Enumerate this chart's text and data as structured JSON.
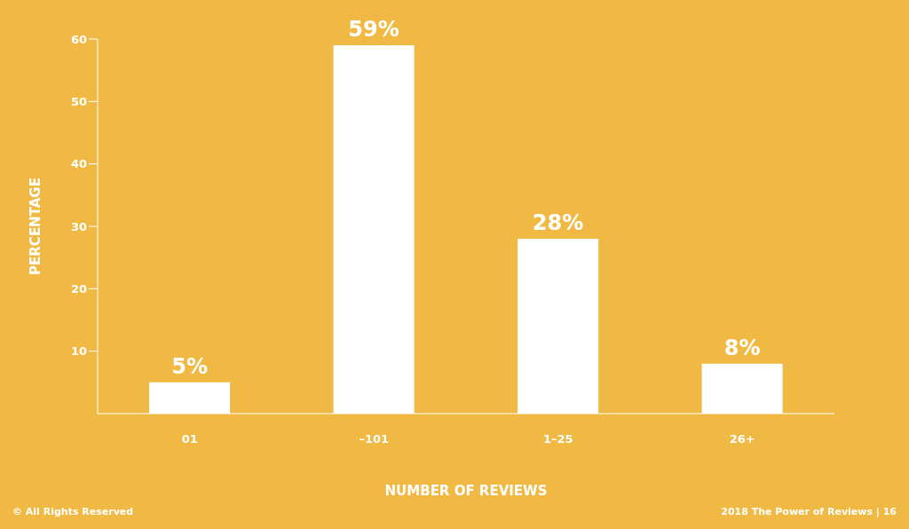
{
  "chart_data": {
    "type": "bar",
    "xlabel": "NUMBER OF REVIEWS",
    "ylabel": "PERCENTAGE",
    "categories": [
      "01",
      "–101",
      "1–25",
      "26+"
    ],
    "values": [
      5,
      59,
      28,
      8
    ],
    "color": "#ffffff",
    "value_labels": [
      "5%",
      "59%",
      "28%",
      "8%"
    ],
    "ylim": [
      0,
      60
    ],
    "yticks": [
      10,
      20,
      30,
      40,
      50,
      60
    ],
    "grid": false,
    "legend": false,
    "annotations": [
      "© All Rights Reserved",
      "2018 The Power of Reviews | 16"
    ]
  }
}
